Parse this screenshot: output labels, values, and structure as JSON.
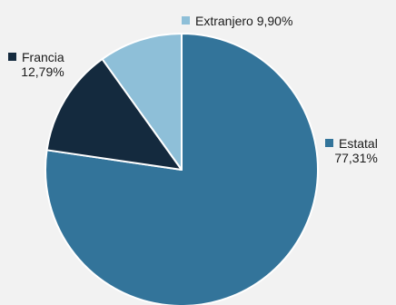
{
  "chart_data": {
    "type": "pie",
    "title": "",
    "slices": [
      {
        "label": "Estatal",
        "value": 77.31,
        "value_label": "77,31%",
        "color": "#33749a"
      },
      {
        "label": "Francia",
        "value": 12.79,
        "value_label": "12,79%",
        "color": "#142a3e"
      },
      {
        "label": "Extranjero",
        "value": 9.9,
        "value_label": "9,90%",
        "color": "#8ebfd8"
      }
    ],
    "start_angle_deg": 0,
    "direction": "clockwise",
    "legend_placement": "labels-around-pie"
  }
}
